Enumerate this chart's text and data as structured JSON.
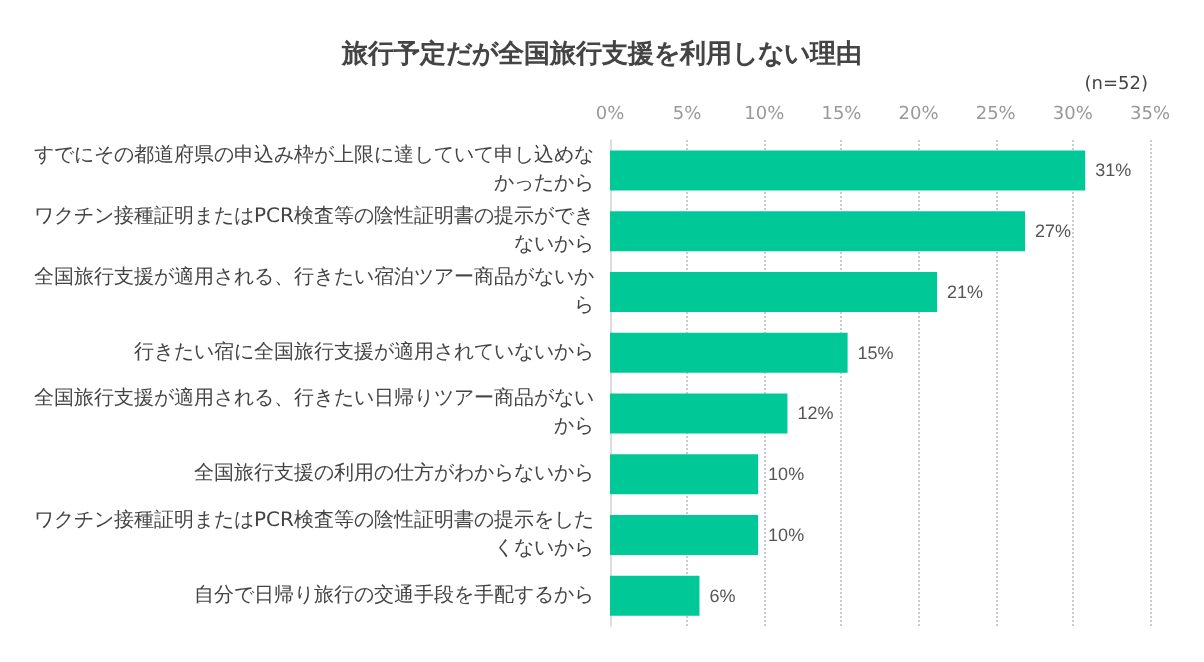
{
  "chart_data": {
    "type": "bar",
    "orientation": "horizontal",
    "title": "旅行予定だが全国旅行支援を利用しない理由",
    "categories": [
      "すでにその都道府県の申込み枠が上限に達していて申し込めなかったから",
      "ワクチン接種証明またはPCR検査等の陰性証明書の提示ができないから",
      "全国旅行支援が適用される、行きたい宿泊ツアー商品がないから",
      "行きたい宿に全国旅行支援が適用されていないから",
      "全国旅行支援が適用される、行きたい日帰りツアー商品がないから",
      "全国旅行支援の利用の仕方がわからないから",
      "ワクチン接種証明またはPCR検査等の陰性証明書の提示をしたくないから",
      "自分で日帰り旅行の交通手段を手配するから"
    ],
    "values": [
      30.8,
      26.9,
      21.2,
      15.4,
      11.5,
      9.6,
      9.6,
      5.8
    ],
    "value_labels": [
      "31%",
      "27%",
      "21%",
      "15%",
      "12%",
      "10%",
      "10%",
      "6%"
    ],
    "color": "#00c896",
    "xlim": [
      0,
      35
    ],
    "xticks": [
      {
        "value": 0,
        "label": "0%"
      },
      {
        "value": 5,
        "label": "5%"
      },
      {
        "value": 10,
        "label": "10%"
      },
      {
        "value": 15,
        "label": "15%"
      },
      {
        "value": 20,
        "label": "20%"
      },
      {
        "value": 25,
        "label": "25%"
      },
      {
        "value": 30,
        "label": "30%"
      },
      {
        "value": 35,
        "label": "35%"
      }
    ],
    "grid": "x",
    "annotations": [
      "(n=52)"
    ]
  }
}
